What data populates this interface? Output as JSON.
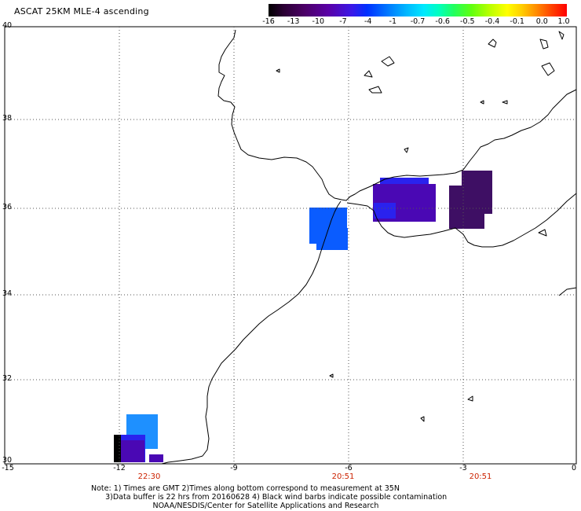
{
  "title": "ASCAT 25KM MLE-4 ascending",
  "colorbar": {
    "ticks": [
      "-16",
      "-13",
      "-10",
      "-7",
      "-4",
      "-1",
      "-0.7",
      "-0.6",
      "-0.5",
      "-0.4",
      "-0.1",
      "0.0",
      "1.0"
    ],
    "colors": [
      "#000000",
      "#4b0066",
      "#5a00a6",
      "#0030ff",
      "#00b4ff",
      "#00ffc0",
      "#60ff10",
      "#ffff00",
      "#ff8800",
      "#ff0000"
    ]
  },
  "lat_labels": [
    "40",
    "38",
    "36",
    "34",
    "32",
    "30"
  ],
  "lon_labels": [
    "-15",
    "-12",
    "-9",
    "-6",
    "-3",
    "0"
  ],
  "time_labels": [
    "22:30",
    "20:51",
    "20:51"
  ],
  "note_lines": [
    "Note: 1) Times are GMT 2)Times along bottom correspond to measurement at 35N",
    "      3)Data buffer is 22 hrs from 20160628 4) Black wind barbs indicate possible contamination",
    "                          NOAA/NESDIS/Center for Satellite Applications and Research"
  ],
  "map_extent": {
    "lon": [
      -15,
      0
    ],
    "lat": [
      30,
      40
    ]
  },
  "data_colors": {
    "blue": "#0a5cff",
    "light_blue": "#1e90ff",
    "royal_blue": "#2a22ee",
    "violet": "#4a08b4",
    "dark_purple": "#3e0f64",
    "black": "#000000"
  }
}
